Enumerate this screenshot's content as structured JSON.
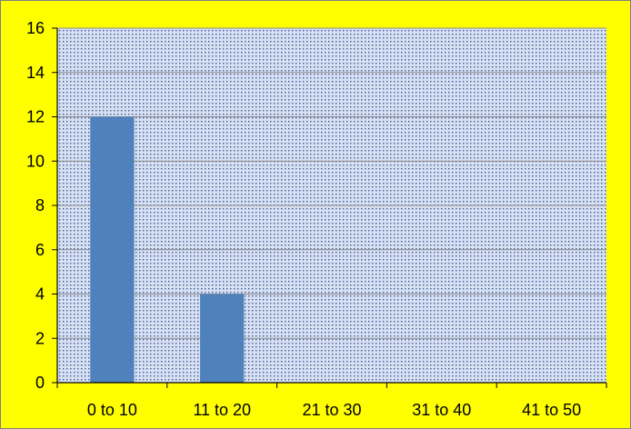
{
  "colors": {
    "background": "#FFFF00",
    "plot_area": "#D6E0F0",
    "plot_dots": "#3A56A0",
    "bar": "#4F81BD",
    "gridline": "#8C8C8C",
    "axis": "#000000",
    "border": "#7F7F7F"
  },
  "chart_data": {
    "type": "bar",
    "title": "",
    "xlabel": "",
    "ylabel": "",
    "categories": [
      "0 to 10",
      "11 to 20",
      "21 to 30",
      "31 to 40",
      "41 to 50"
    ],
    "values": [
      12,
      4,
      0,
      0,
      0
    ],
    "ylim": [
      0,
      16
    ],
    "yticks": [
      "0",
      "2",
      "4",
      "6",
      "8",
      "10",
      "12",
      "14",
      "16"
    ],
    "grid": true,
    "legend": "none"
  }
}
